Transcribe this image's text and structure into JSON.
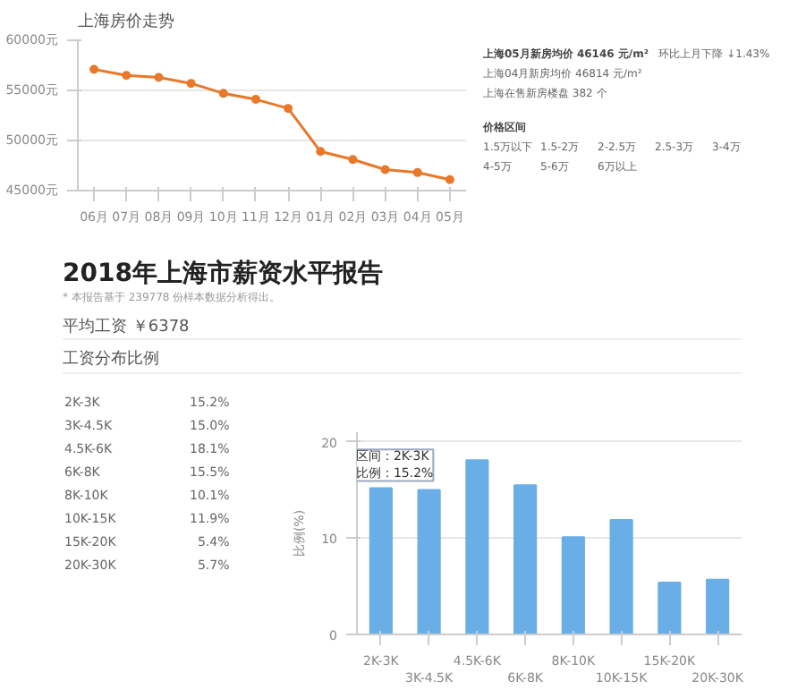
{
  "chart_data": [
    {
      "type": "line",
      "title": "上海房价走势",
      "categories": [
        "06月",
        "07月",
        "08月",
        "09月",
        "10月",
        "11月",
        "12月",
        "01月",
        "02月",
        "03月",
        "04月",
        "05月"
      ],
      "values": [
        57100,
        56500,
        56300,
        55700,
        54700,
        54100,
        53200,
        48900,
        48100,
        47100,
        46800,
        46100
      ],
      "color": "#e8782a",
      "marker": "circle",
      "grid": "y",
      "ylim": [
        45000,
        60000
      ],
      "yticks": [
        {
          "value": 45000,
          "label": "45000元"
        },
        {
          "value": 50000,
          "label": "50000元"
        },
        {
          "value": 55000,
          "label": "55000元"
        },
        {
          "value": 60000,
          "label": "60000元"
        }
      ],
      "annotations": [
        "上海05月新房均价 46146 元/m²",
        "环比上月下降 ↓1.43%",
        "上海04月新房均价 46814 元/m²",
        "上海在售新房楼盘 382 个",
        "价格区间",
        "1.5万以下",
        "1.5-2万",
        "2-2.5万",
        "2.5-3万",
        "3-4万",
        "4-5万",
        "5-6万",
        "6万以上"
      ]
    },
    {
      "type": "other",
      "title": "2018年上海市薪资水平报告",
      "subtitle": "* 本报告基于 239778 份样本数据分析得出。",
      "annotations": [
        "平均工资 ￥6378",
        "工资分布比例",
        "2K-3K",
        "15.2%",
        "3K-4.5K",
        "15.0%",
        "4.5K-6K",
        "18.1%",
        "6K-8K",
        "15.5%",
        "8K-10K",
        "10.1%",
        "10K-15K",
        "11.9%",
        "15K-20K",
        "5.4%",
        "20K-30K",
        "5.7%"
      ]
    },
    {
      "type": "bar",
      "categories": [
        "2K-3K",
        "3K-4.5K",
        "4.5K-6K",
        "6K-8K",
        "8K-10K",
        "10K-15K",
        "15K-20K",
        "20K-30K"
      ],
      "values": [
        15.2,
        15.0,
        18.1,
        15.5,
        10.1,
        11.9,
        5.4,
        5.7
      ],
      "color": "#6aaee8",
      "ylabel": "比例(%)",
      "grid": "y",
      "ylim": [
        0,
        21
      ],
      "yticks": [
        0,
        10,
        20
      ],
      "annotations": [
        {
          "text": "区间：2K-3K\n比例：15.2%",
          "x": "2K-3K",
          "y": 15.2
        }
      ]
    }
  ]
}
